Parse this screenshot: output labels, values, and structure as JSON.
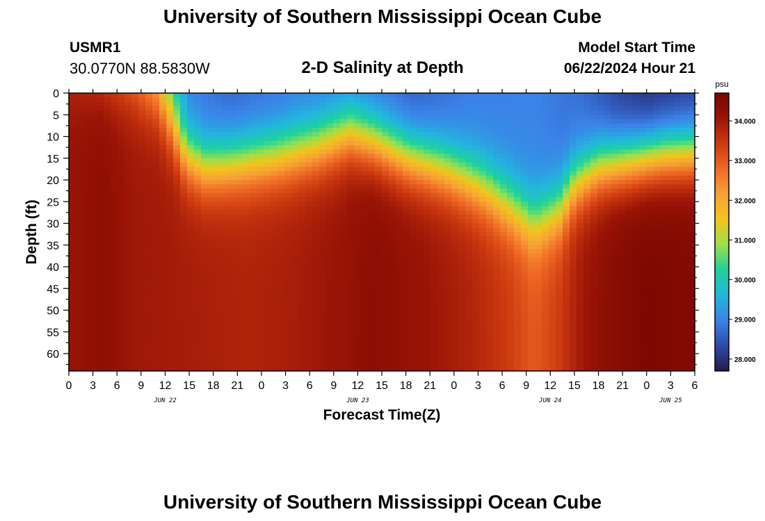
{
  "page": {
    "title": "University of Southern Mississippi Ocean Cube",
    "footer_title": "University of Southern Mississippi Ocean Cube"
  },
  "station": {
    "id": "USMR1",
    "coords": "30.0770N  88.5830W"
  },
  "model_start": {
    "label": "Model Start Time",
    "value": "06/22/2024 Hour 21"
  },
  "chart_data": {
    "type": "heatmap",
    "title": "2-D Salinity at Depth",
    "xlabel": "Forecast Time(Z)",
    "ylabel": "Depth (ft)",
    "x_hours_range": [
      0,
      78
    ],
    "y_depth_ft_range": [
      0,
      64
    ],
    "x_ticks": [
      {
        "h": 0,
        "label": "0"
      },
      {
        "h": 3,
        "label": "3"
      },
      {
        "h": 6,
        "label": "6"
      },
      {
        "h": 9,
        "label": "9"
      },
      {
        "h": 12,
        "label": "12"
      },
      {
        "h": 15,
        "label": "15"
      },
      {
        "h": 18,
        "label": "18"
      },
      {
        "h": 21,
        "label": "21"
      },
      {
        "h": 24,
        "label": "0"
      },
      {
        "h": 27,
        "label": "3"
      },
      {
        "h": 30,
        "label": "6"
      },
      {
        "h": 33,
        "label": "9"
      },
      {
        "h": 36,
        "label": "12"
      },
      {
        "h": 39,
        "label": "15"
      },
      {
        "h": 42,
        "label": "18"
      },
      {
        "h": 45,
        "label": "21"
      },
      {
        "h": 48,
        "label": "0"
      },
      {
        "h": 51,
        "label": "3"
      },
      {
        "h": 54,
        "label": "6"
      },
      {
        "h": 57,
        "label": "9"
      },
      {
        "h": 60,
        "label": "12"
      },
      {
        "h": 63,
        "label": "15"
      },
      {
        "h": 66,
        "label": "18"
      },
      {
        "h": 69,
        "label": "21"
      },
      {
        "h": 72,
        "label": "0"
      },
      {
        "h": 75,
        "label": "3"
      },
      {
        "h": 78,
        "label": "6"
      }
    ],
    "date_labels": [
      {
        "h": 12,
        "label": "JUN 22"
      },
      {
        "h": 36,
        "label": "JUN 23"
      },
      {
        "h": 60,
        "label": "JUN 24"
      },
      {
        "h": 75,
        "label": "JUN 25"
      }
    ],
    "y_ticks": [
      0,
      5,
      10,
      15,
      20,
      25,
      30,
      35,
      40,
      45,
      50,
      55,
      60
    ],
    "colorbar": {
      "unit": "psu",
      "range": [
        27.7,
        34.7
      ],
      "ticks": [
        {
          "v": 34,
          "label": "34.000"
        },
        {
          "v": 33,
          "label": "33.000"
        },
        {
          "v": 32,
          "label": "32.000"
        },
        {
          "v": 31,
          "label": "31.000"
        },
        {
          "v": 30,
          "label": "30.000"
        },
        {
          "v": 29,
          "label": "29.000"
        },
        {
          "v": 28,
          "label": "28.000"
        }
      ],
      "colors": [
        "#231b4c",
        "#2e4aa6",
        "#3b82e8",
        "#21b7dc",
        "#1ed29b",
        "#9be04a",
        "#f2c51c",
        "#f7a136",
        "#ef6a25",
        "#cd3a10",
        "#9a1406",
        "#780600"
      ]
    },
    "halocline_depth_ft": [
      {
        "h": 0,
        "d": 0
      },
      {
        "h": 8,
        "d": 0
      },
      {
        "h": 11,
        "d": 2
      },
      {
        "h": 13,
        "d": 8
      },
      {
        "h": 14.5,
        "d": 14
      },
      {
        "h": 17,
        "d": 17
      },
      {
        "h": 21,
        "d": 16
      },
      {
        "h": 26,
        "d": 14.5
      },
      {
        "h": 31,
        "d": 12
      },
      {
        "h": 35,
        "d": 9
      },
      {
        "h": 38,
        "d": 11
      },
      {
        "h": 42,
        "d": 14.5
      },
      {
        "h": 47,
        "d": 17.5
      },
      {
        "h": 52,
        "d": 22
      },
      {
        "h": 55,
        "d": 26
      },
      {
        "h": 58,
        "d": 30
      },
      {
        "h": 61,
        "d": 27
      },
      {
        "h": 63,
        "d": 21
      },
      {
        "h": 66,
        "d": 17
      },
      {
        "h": 70,
        "d": 15.5
      },
      {
        "h": 74,
        "d": 14
      },
      {
        "h": 78,
        "d": 13.5
      }
    ],
    "surface_salinity": [
      {
        "h": 0,
        "v": 33.6
      },
      {
        "h": 4,
        "v": 33.2
      },
      {
        "h": 8,
        "v": 32.3
      },
      {
        "h": 11,
        "v": 31.2
      },
      {
        "h": 13,
        "v": 30.0
      },
      {
        "h": 15,
        "v": 28.9
      },
      {
        "h": 20,
        "v": 28.6
      },
      {
        "h": 28,
        "v": 28.8
      },
      {
        "h": 35,
        "v": 28.8
      },
      {
        "h": 43,
        "v": 28.5
      },
      {
        "h": 50,
        "v": 28.9
      },
      {
        "h": 58,
        "v": 29.0
      },
      {
        "h": 64,
        "v": 28.7
      },
      {
        "h": 68,
        "v": 28.2
      },
      {
        "h": 72,
        "v": 27.9
      },
      {
        "h": 78,
        "v": 28.1
      }
    ],
    "deep_salinity": [
      {
        "h": 0,
        "v": 34.1
      },
      {
        "h": 4,
        "v": 34.3
      },
      {
        "h": 8,
        "v": 34.0
      },
      {
        "h": 16,
        "v": 33.9
      },
      {
        "h": 22,
        "v": 33.8
      },
      {
        "h": 28,
        "v": 33.9
      },
      {
        "h": 34,
        "v": 34.1
      },
      {
        "h": 38,
        "v": 34.35
      },
      {
        "h": 44,
        "v": 34.1
      },
      {
        "h": 50,
        "v": 33.8
      },
      {
        "h": 55,
        "v": 33.4
      },
      {
        "h": 58,
        "v": 33.0
      },
      {
        "h": 61,
        "v": 33.4
      },
      {
        "h": 64,
        "v": 34.0
      },
      {
        "h": 68,
        "v": 34.4
      },
      {
        "h": 72,
        "v": 34.6
      },
      {
        "h": 78,
        "v": 34.5
      }
    ]
  }
}
